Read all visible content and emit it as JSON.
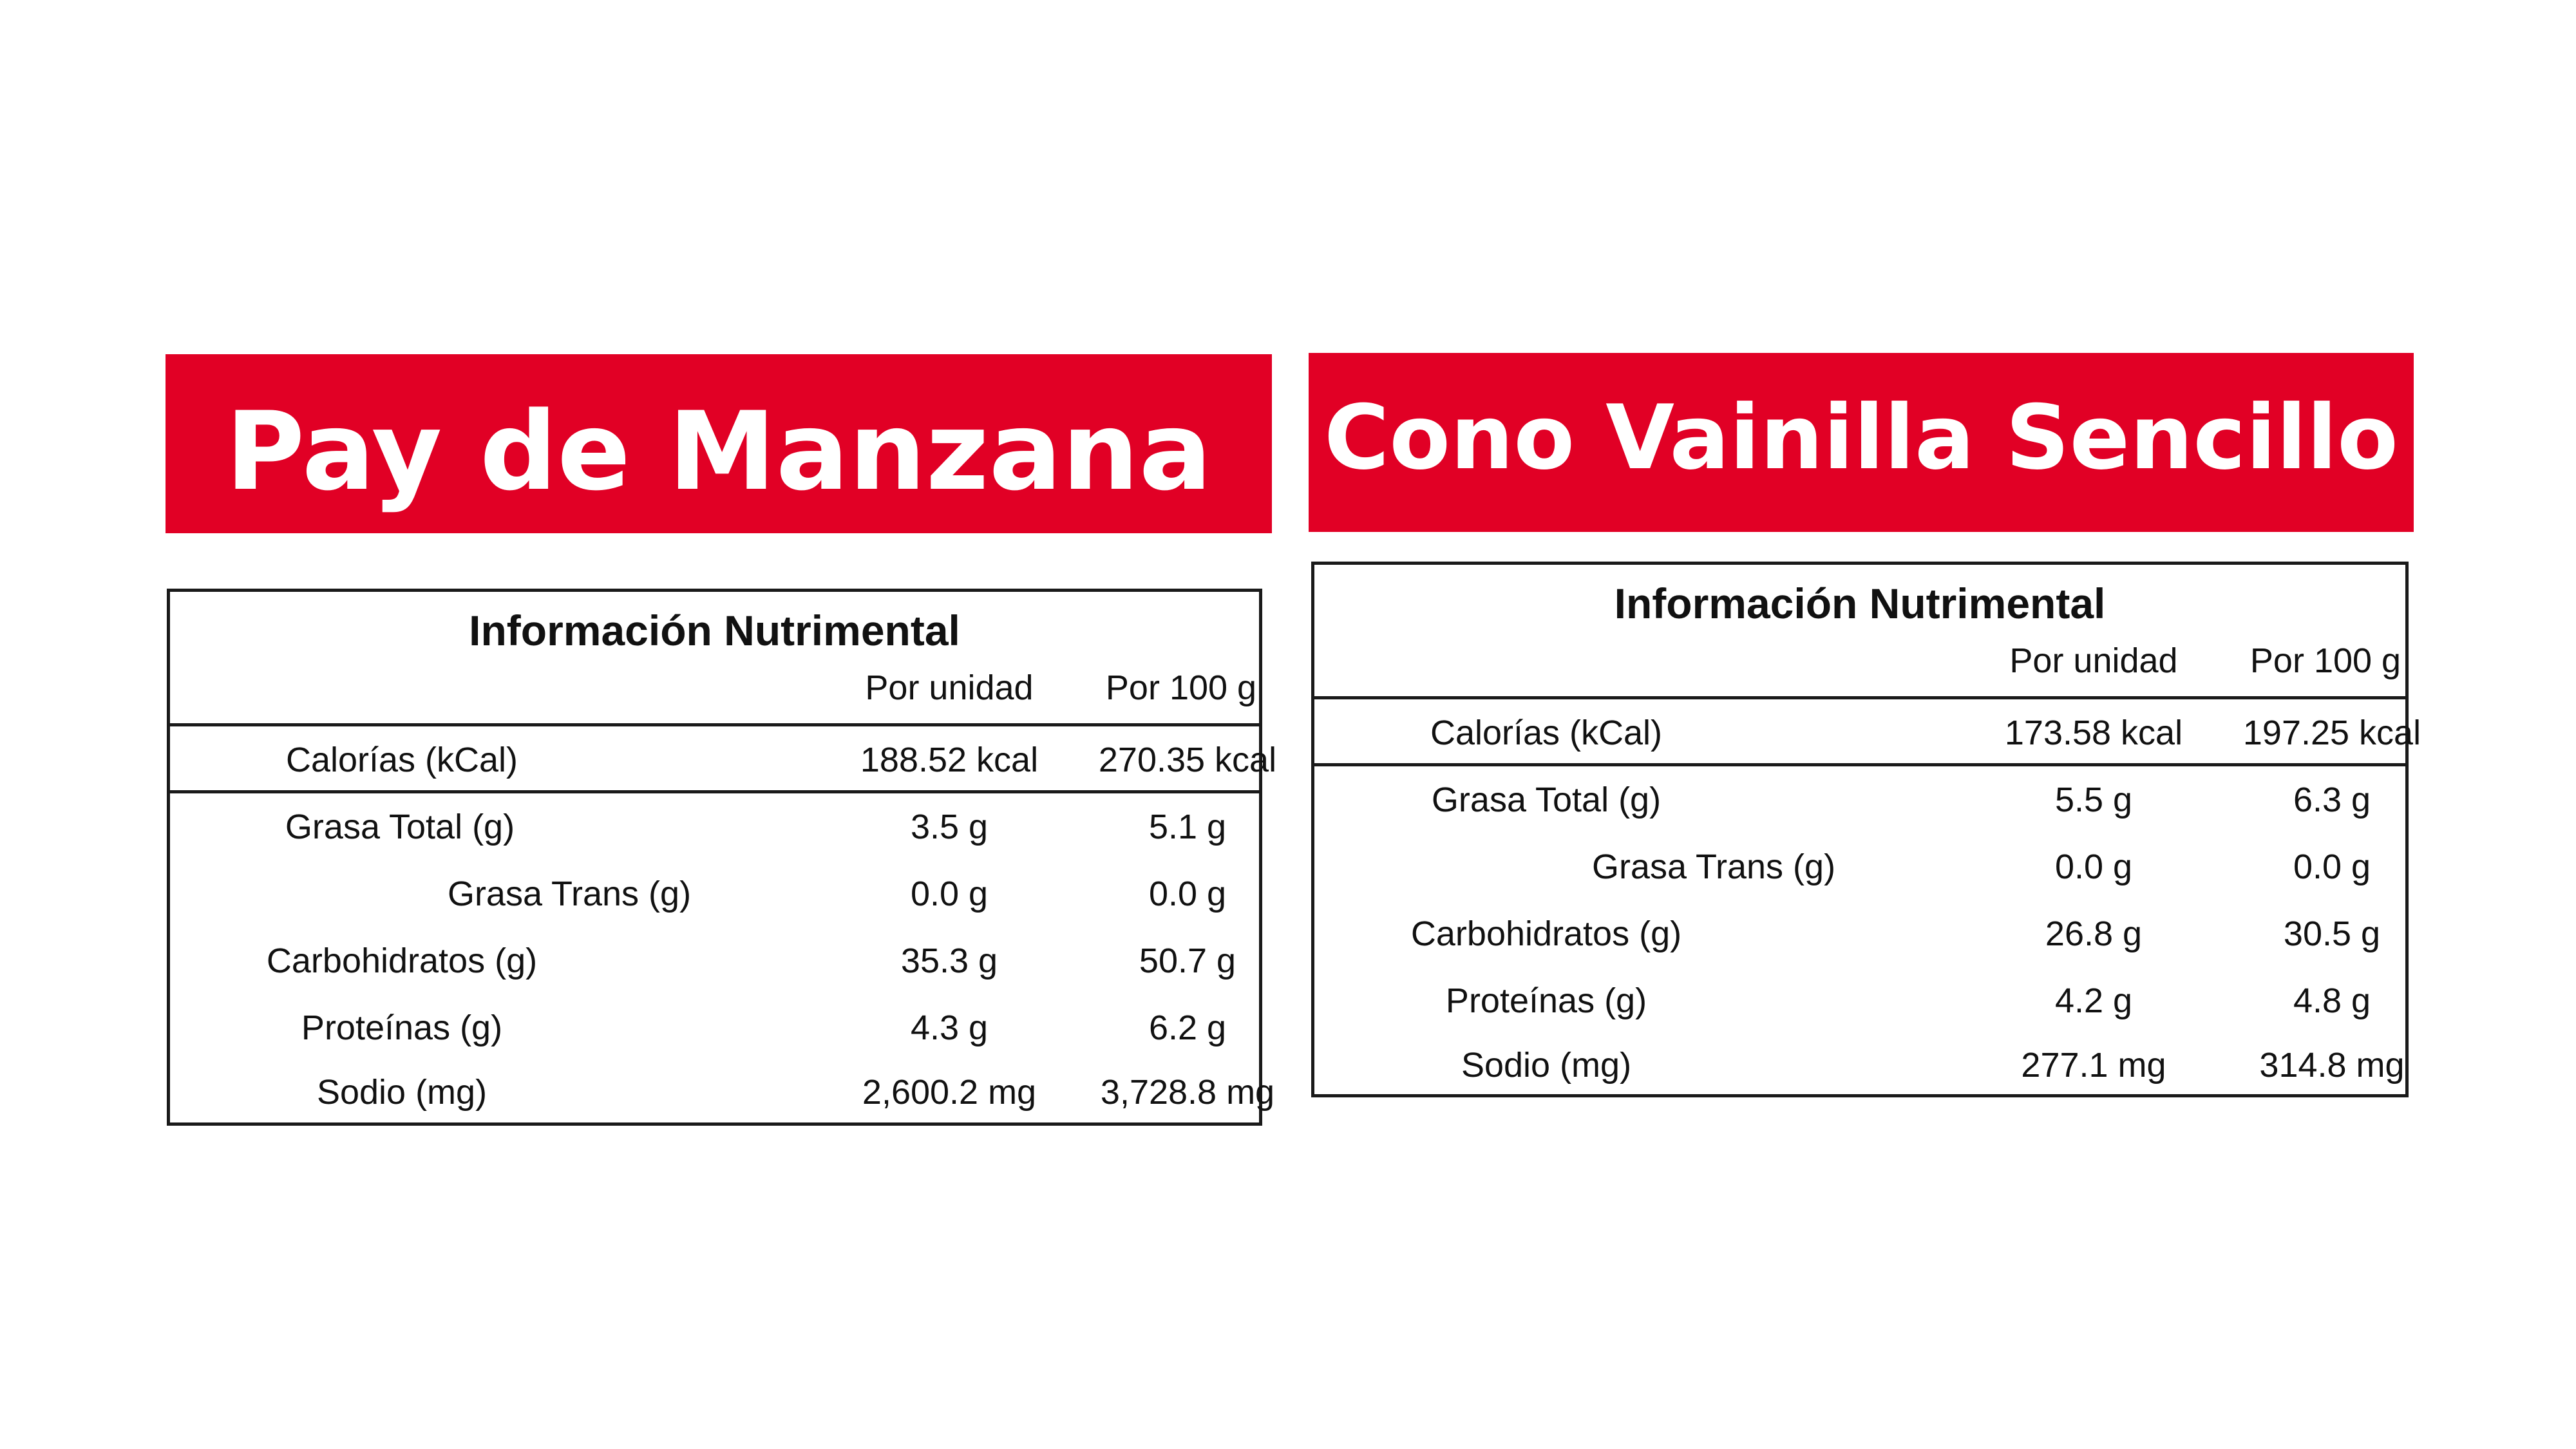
{
  "left_product": {
    "title": "Pay de Manzana",
    "table_title": "Información Nutrimental",
    "col_unit": "Por unidad",
    "col_100g": "Por 100 g",
    "calories": {
      "label": "Calorías (kCal)",
      "unit": "188.52 kcal",
      "per100": "270.35 kcal"
    },
    "rows": [
      {
        "label": "Grasa Total (g)",
        "unit": "3.5 g",
        "per100": "5.1 g"
      },
      {
        "label": "Grasa Trans (g)",
        "unit": "0.0 g",
        "per100": "0.0 g"
      },
      {
        "label": "Carbohidratos (g)",
        "unit": "35.3 g",
        "per100": "50.7 g"
      },
      {
        "label": "Proteínas (g)",
        "unit": "4.3 g",
        "per100": "6.2 g"
      },
      {
        "label": "Sodio (mg)",
        "unit": "2,600.2 mg",
        "per100": "3,728.8 mg"
      }
    ]
  },
  "right_product": {
    "title": "Cono Vainilla Sencillo",
    "table_title": "Información Nutrimental",
    "col_unit": "Por unidad",
    "col_100g": "Por 100 g",
    "calories": {
      "label": "Calorías (kCal)",
      "unit": "173.58 kcal",
      "per100": "197.25 kcal"
    },
    "rows": [
      {
        "label": "Grasa Total (g)",
        "unit": "5.5 g",
        "per100": "6.3 g"
      },
      {
        "label": "Grasa Trans (g)",
        "unit": "0.0 g",
        "per100": "0.0 g"
      },
      {
        "label": "Carbohidratos (g)",
        "unit": "26.8 g",
        "per100": "30.5 g"
      },
      {
        "label": "Proteínas (g)",
        "unit": "4.2 g",
        "per100": "4.8 g"
      },
      {
        "label": "Sodio (mg)",
        "unit": "277.1 mg",
        "per100": "314.8 mg"
      }
    ]
  },
  "colors": {
    "banner": "#e10025",
    "banner_text": "#ffffff",
    "border": "#1a1a1a"
  }
}
